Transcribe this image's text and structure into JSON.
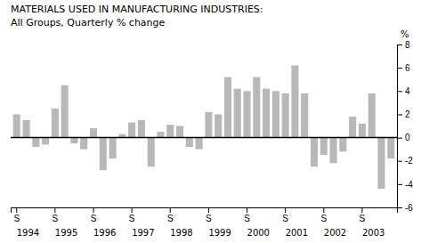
{
  "chart_data": {
    "type": "bar",
    "title": "MATERIALS USED IN MANUFACTURING INDUSTRIES:",
    "subtitle": "All Groups, Quarterly % change",
    "ylabel": "%",
    "color": "#b8b8b8",
    "categories": [
      "S",
      null,
      null,
      null,
      "S",
      null,
      null,
      null,
      "S",
      null,
      null,
      null,
      "S",
      null,
      null,
      null,
      "S",
      null,
      null,
      null,
      "S",
      null,
      null,
      null,
      "S",
      null,
      null,
      null,
      "S",
      null,
      null,
      null,
      "S",
      null,
      null,
      null,
      "S",
      null,
      null,
      null
    ],
    "values": [
      2.0,
      1.5,
      -0.8,
      -0.6,
      2.5,
      4.5,
      -0.5,
      -1.0,
      0.8,
      -2.8,
      -1.8,
      0.3,
      1.3,
      1.5,
      -2.5,
      0.5,
      1.1,
      1.0,
      -0.8,
      -1.0,
      2.2,
      2.0,
      5.2,
      4.2,
      4.0,
      5.2,
      4.2,
      4.0,
      3.8,
      6.2,
      3.8,
      -2.5,
      -1.5,
      -2.2,
      -1.2,
      1.8,
      1.2,
      3.8,
      -4.4,
      -1.8
    ],
    "annotations": [
      "1994",
      "1995",
      "1996",
      "1997",
      "1998",
      "1999",
      "2000",
      "2001",
      "2002",
      "2003"
    ],
    "ylim": [
      -6,
      8
    ],
    "yticks": [
      -6,
      -4,
      -2,
      0,
      2,
      4,
      6,
      8
    ],
    "grid": false
  }
}
